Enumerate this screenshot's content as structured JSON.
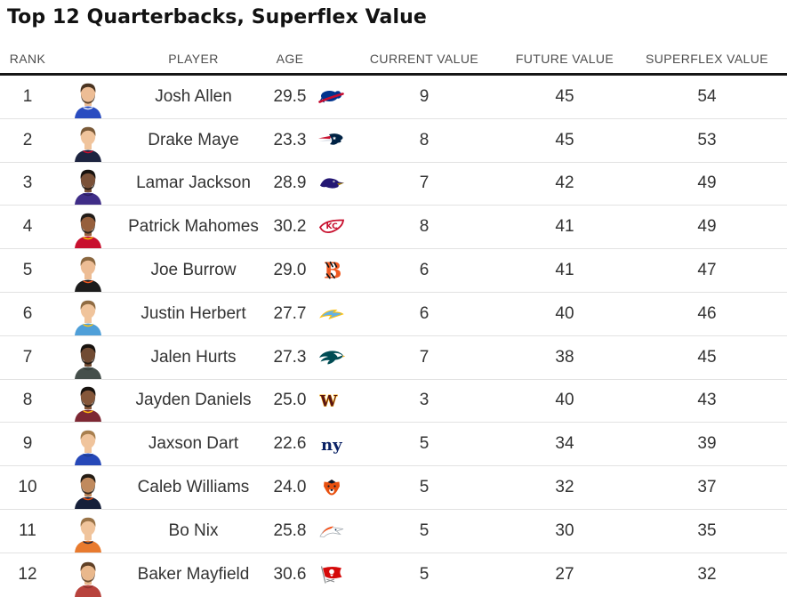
{
  "title": "Top 12 Quarterbacks, Superflex Value",
  "colors": {
    "title_text": "#121212",
    "header_text": "#4d4d4d",
    "body_text": "#333333",
    "header_rule": "#161616",
    "row_divider": "#e2e2e2"
  },
  "table": {
    "headers": [
      "RANK",
      "PLAYER",
      "AGE",
      "CURRENT VALUE",
      "FUTURE VALUE",
      "SUPERFLEX VALUE"
    ],
    "players": [
      {
        "rank": 1,
        "name": "Josh Allen",
        "age": "29.5",
        "team": "Buffalo Bills",
        "team_abbr": "BUF",
        "team_color": "#2a4cc0",
        "current_value": 9,
        "future_value": 45,
        "superflex_value": 54
      },
      {
        "rank": 2,
        "name": "Drake Maye",
        "age": "23.3",
        "team": "New England Patriots",
        "team_abbr": "NE",
        "team_color": "#1d2440",
        "current_value": 8,
        "future_value": 45,
        "superflex_value": 53
      },
      {
        "rank": 3,
        "name": "Lamar Jackson",
        "age": "28.9",
        "team": "Baltimore Ravens",
        "team_abbr": "BAL",
        "team_color": "#3f2d87",
        "current_value": 7,
        "future_value": 42,
        "superflex_value": 49
      },
      {
        "rank": 4,
        "name": "Patrick Mahomes",
        "age": "30.2",
        "team": "Kansas City Chiefs",
        "team_abbr": "KC",
        "team_color": "#c8102e",
        "current_value": 8,
        "future_value": 41,
        "superflex_value": 49
      },
      {
        "rank": 5,
        "name": "Joe Burrow",
        "age": "29.0",
        "team": "Cincinnati Bengals",
        "team_abbr": "CIN",
        "team_color": "#1c1c1c",
        "current_value": 6,
        "future_value": 41,
        "superflex_value": 47
      },
      {
        "rank": 6,
        "name": "Justin Herbert",
        "age": "27.7",
        "team": "Los Angeles Chargers",
        "team_abbr": "LAC",
        "team_color": "#4f9fd8",
        "current_value": 6,
        "future_value": 40,
        "superflex_value": 46
      },
      {
        "rank": 7,
        "name": "Jalen Hurts",
        "age": "27.3",
        "team": "Philadelphia Eagles",
        "team_abbr": "PHI",
        "team_color": "#454f4b",
        "current_value": 7,
        "future_value": 38,
        "superflex_value": 45
      },
      {
        "rank": 8,
        "name": "Jayden Daniels",
        "age": "25.0",
        "team": "Washington Commanders",
        "team_abbr": "WAS",
        "team_color": "#7d2733",
        "current_value": 3,
        "future_value": 40,
        "superflex_value": 43
      },
      {
        "rank": 9,
        "name": "Jaxson Dart",
        "age": "22.6",
        "team": "New York Giants",
        "team_abbr": "NYG",
        "team_color": "#2648b8",
        "current_value": 5,
        "future_value": 34,
        "superflex_value": 39
      },
      {
        "rank": 10,
        "name": "Caleb Williams",
        "age": "24.0",
        "team": "Chicago Bears",
        "team_abbr": "CHI",
        "team_color": "#16203a",
        "current_value": 5,
        "future_value": 32,
        "superflex_value": 37
      },
      {
        "rank": 11,
        "name": "Bo Nix",
        "age": "25.8",
        "team": "Denver Broncos",
        "team_abbr": "DEN",
        "team_color": "#e87a2e",
        "current_value": 5,
        "future_value": 30,
        "superflex_value": 35
      },
      {
        "rank": 12,
        "name": "Baker Mayfield",
        "age": "30.6",
        "team": "Tampa Bay Buccaneers",
        "team_abbr": "TB",
        "team_color": "#b8433d",
        "current_value": 5,
        "future_value": 27,
        "superflex_value": 32
      }
    ]
  }
}
